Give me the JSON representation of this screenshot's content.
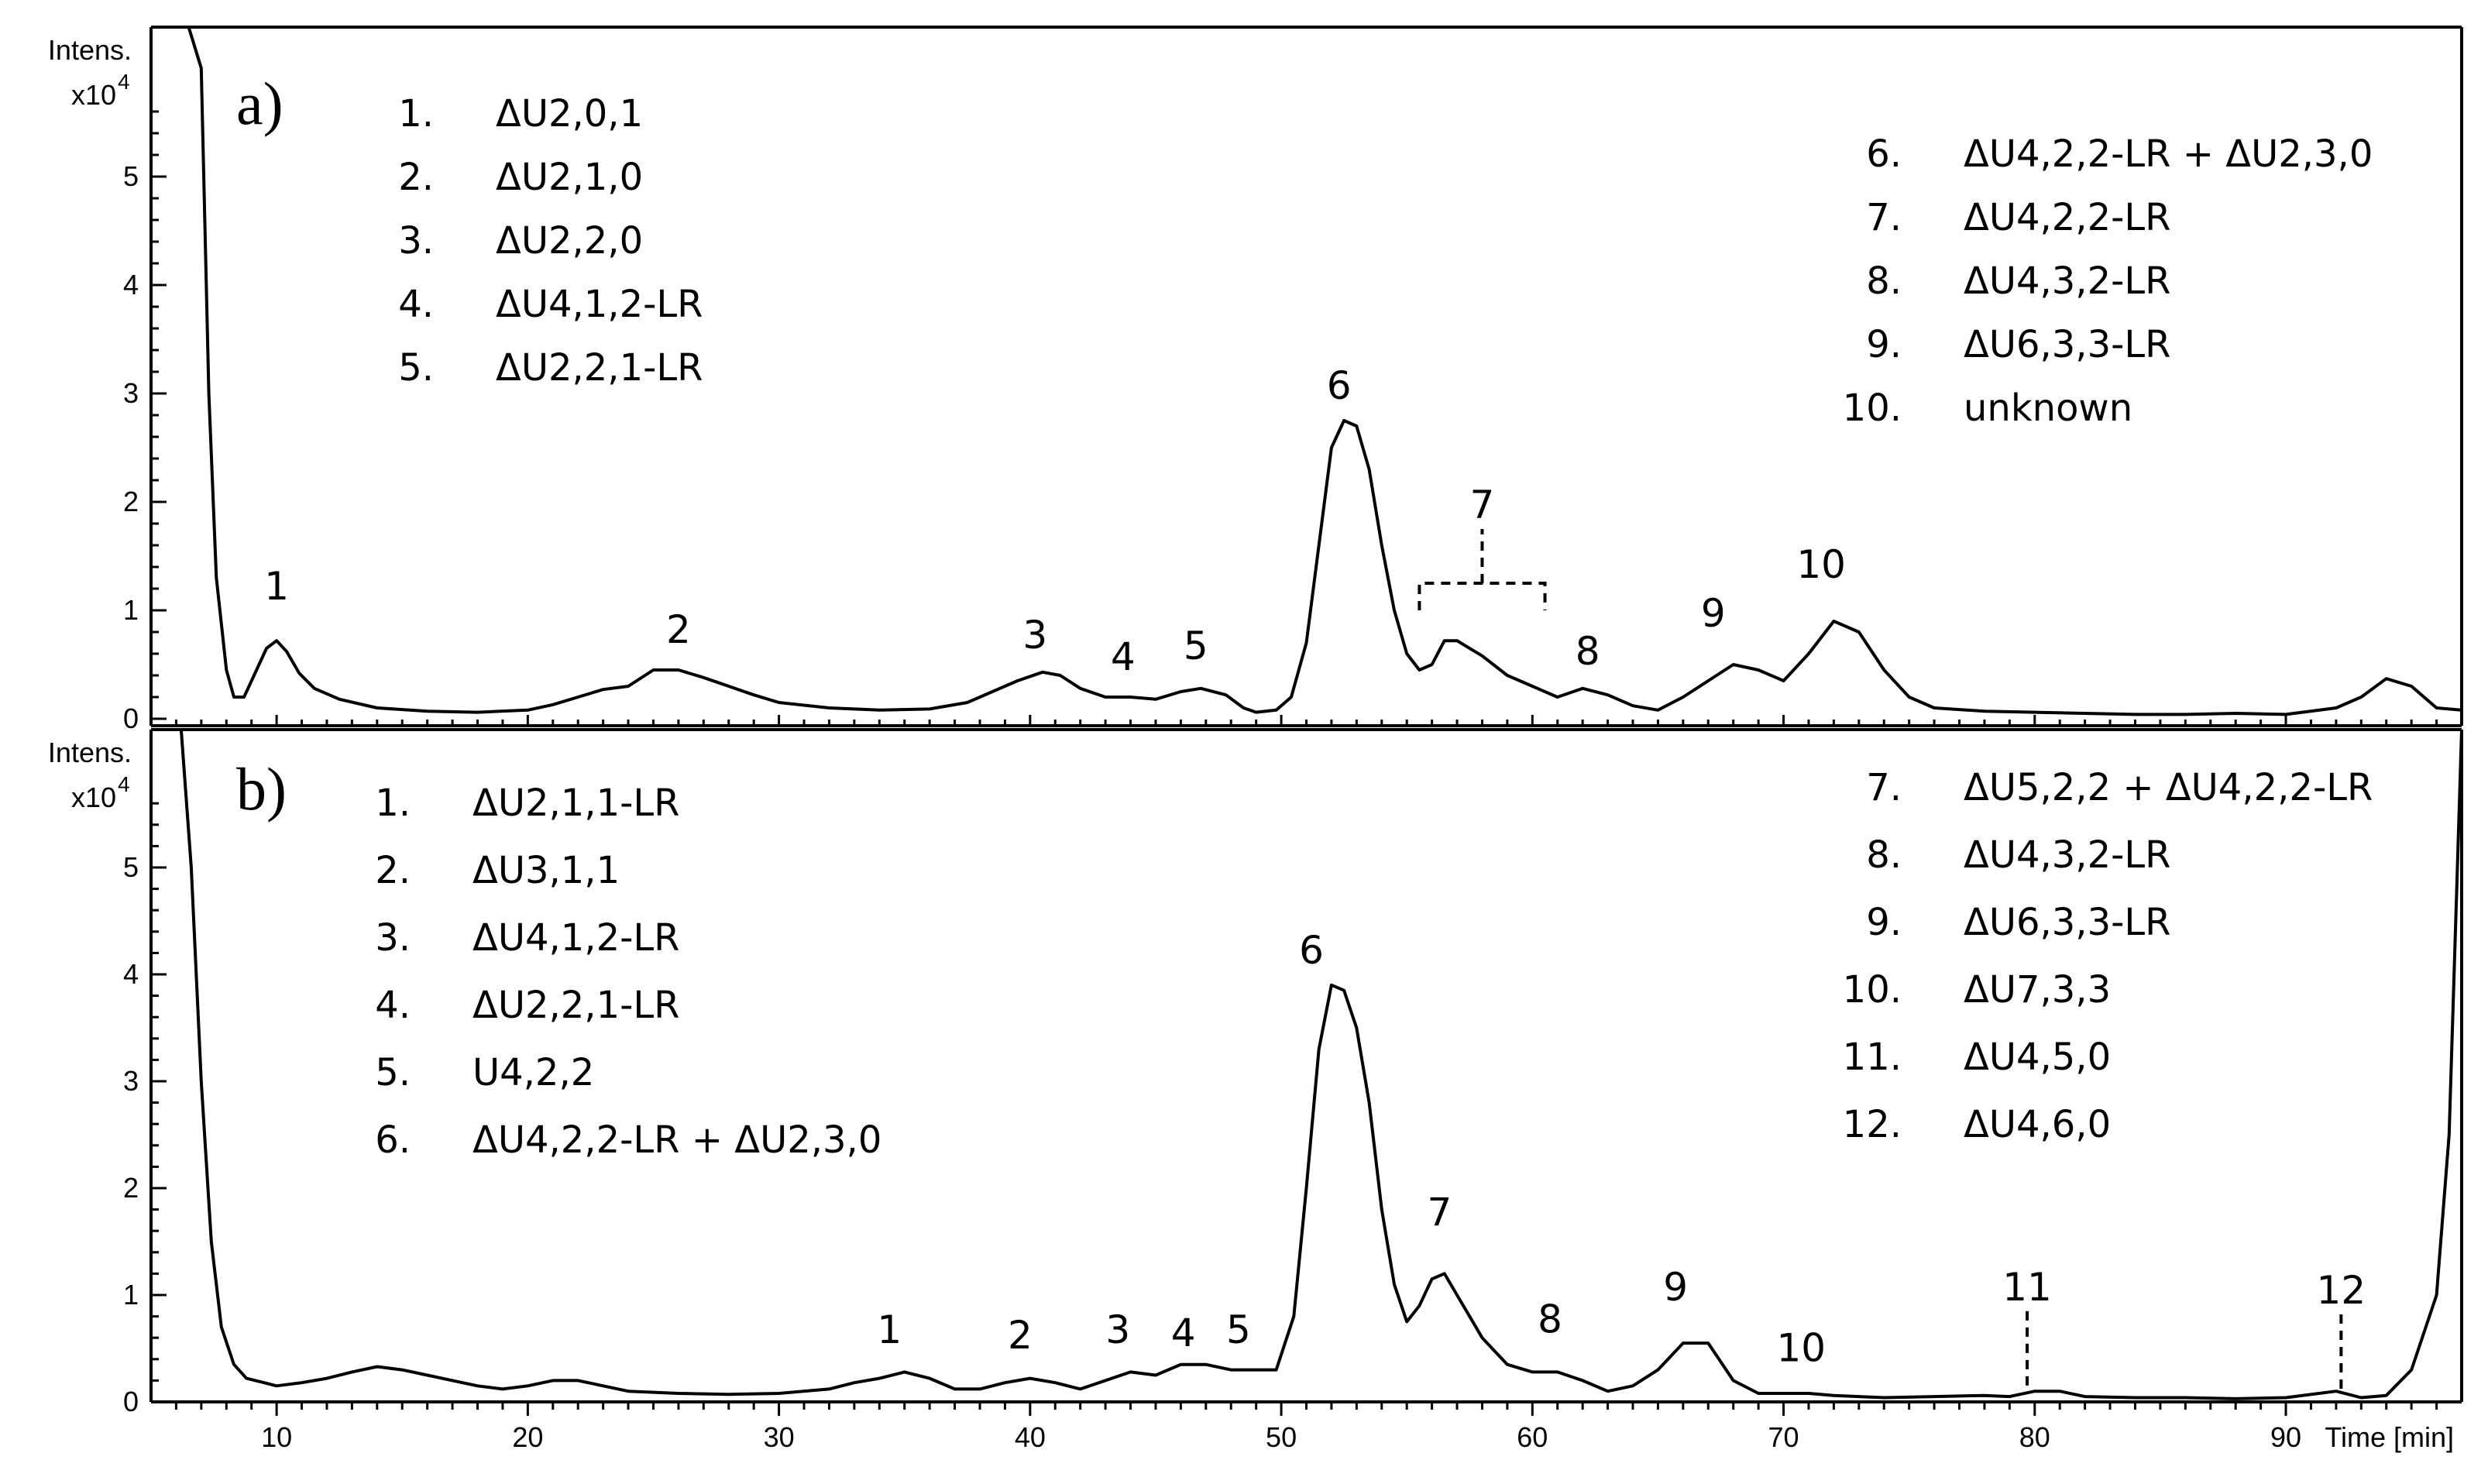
{
  "chart_data": [
    {
      "type": "line",
      "panel_label": "a)",
      "ylabel_line1": "Intens.",
      "ylabel_line2": "x10",
      "ylabel_exp": "4",
      "xlabel": "",
      "xlim": [
        5,
        97
      ],
      "ylim": [
        0,
        6
      ],
      "yticks": [
        0,
        1,
        2,
        3,
        4,
        5
      ],
      "xticks": [],
      "peak_labels": [
        {
          "label": "1",
          "x": 10.0,
          "y": 1.1
        },
        {
          "label": "2",
          "x": 26.0,
          "y": 0.7
        },
        {
          "label": "3",
          "x": 40.2,
          "y": 0.65
        },
        {
          "label": "4",
          "x": 43.7,
          "y": 0.45
        },
        {
          "label": "5",
          "x": 46.6,
          "y": 0.55
        },
        {
          "label": "6",
          "x": 52.3,
          "y": 2.95
        },
        {
          "label": "7",
          "x": 58.0,
          "y": 1.85
        },
        {
          "label": "8",
          "x": 62.2,
          "y": 0.5
        },
        {
          "label": "9",
          "x": 67.2,
          "y": 0.85
        },
        {
          "label": "10",
          "x": 71.5,
          "y": 1.3
        }
      ],
      "legend_left": [
        {
          "num": "1.",
          "name": "ΔU2,0,1"
        },
        {
          "num": "2.",
          "name": "ΔU2,1,0"
        },
        {
          "num": "3.",
          "name": "ΔU2,2,0"
        },
        {
          "num": "4.",
          "name": "ΔU4,1,2-LR"
        },
        {
          "num": "5.",
          "name": "ΔU2,2,1-LR"
        }
      ],
      "legend_right": [
        {
          "num": "6.",
          "name": "ΔU4,2,2-LR + ΔU2,3,0"
        },
        {
          "num": "7.",
          "name": "ΔU4,2,2-LR"
        },
        {
          "num": "8.",
          "name": "ΔU4,3,2-LR"
        },
        {
          "num": "9.",
          "name": "ΔU6,3,3-LR"
        },
        {
          "num": "10.",
          "name": "unknown"
        }
      ],
      "series": [
        {
          "x": [
            6.5,
            7.0,
            7.3,
            7.6,
            8.0,
            8.3,
            8.7,
            9.2,
            9.6,
            10.0,
            10.4,
            10.9,
            11.5,
            12.5,
            14,
            16,
            18,
            20,
            21,
            22,
            23,
            24,
            25,
            26,
            27,
            28,
            29,
            30,
            32,
            34,
            36,
            37.5,
            38.5,
            39.5,
            40.5,
            41.2,
            42,
            43,
            44,
            45,
            46,
            46.8,
            47.8,
            48.5,
            49,
            49.8,
            50.4,
            51,
            51.5,
            52,
            52.5,
            53,
            53.5,
            54,
            54.5,
            55,
            55.5,
            56,
            56.5,
            57,
            58,
            59,
            60,
            61,
            62,
            63,
            64,
            65,
            66,
            67,
            68,
            69,
            70,
            71,
            72,
            73,
            74,
            75,
            76,
            78,
            80,
            82,
            84,
            86,
            88,
            90,
            92,
            93,
            94,
            95,
            96,
            97
          ],
          "y": [
            6.5,
            6.0,
            3.0,
            1.3,
            0.45,
            0.2,
            0.2,
            0.45,
            0.65,
            0.72,
            0.62,
            0.42,
            0.28,
            0.18,
            0.1,
            0.07,
            0.06,
            0.08,
            0.13,
            0.2,
            0.27,
            0.3,
            0.45,
            0.45,
            0.38,
            0.3,
            0.22,
            0.15,
            0.1,
            0.08,
            0.09,
            0.15,
            0.25,
            0.35,
            0.43,
            0.4,
            0.28,
            0.2,
            0.2,
            0.18,
            0.25,
            0.28,
            0.22,
            0.1,
            0.06,
            0.08,
            0.2,
            0.7,
            1.6,
            2.5,
            2.75,
            2.7,
            2.3,
            1.6,
            1.0,
            0.6,
            0.45,
            0.5,
            0.72,
            0.72,
            0.58,
            0.4,
            0.3,
            0.2,
            0.28,
            0.22,
            0.12,
            0.08,
            0.2,
            0.35,
            0.5,
            0.45,
            0.35,
            0.6,
            0.9,
            0.8,
            0.45,
            0.2,
            0.1,
            0.07,
            0.06,
            0.05,
            0.04,
            0.04,
            0.05,
            0.04,
            0.1,
            0.2,
            0.37,
            0.3,
            0.1,
            0.08
          ]
        }
      ]
    },
    {
      "type": "line",
      "panel_label": "b)",
      "ylabel_line1": "Intens.",
      "ylabel_line2": "x10",
      "ylabel_exp": "4",
      "xlabel": "Time [min]",
      "xlim": [
        5,
        97
      ],
      "ylim": [
        0,
        6
      ],
      "yticks": [
        0,
        1,
        2,
        3,
        4,
        5
      ],
      "xticks": [
        10,
        20,
        30,
        40,
        50,
        60,
        70,
        80,
        90
      ],
      "peak_labels": [
        {
          "label": "1",
          "x": 34.4,
          "y": 0.55
        },
        {
          "label": "2",
          "x": 39.6,
          "y": 0.5
        },
        {
          "label": "3",
          "x": 43.5,
          "y": 0.55
        },
        {
          "label": "4",
          "x": 46.1,
          "y": 0.52
        },
        {
          "label": "5",
          "x": 48.3,
          "y": 0.55
        },
        {
          "label": "6",
          "x": 51.2,
          "y": 4.1
        },
        {
          "label": "7",
          "x": 56.3,
          "y": 1.65
        },
        {
          "label": "8",
          "x": 60.7,
          "y": 0.65
        },
        {
          "label": "9",
          "x": 65.7,
          "y": 0.95
        },
        {
          "label": "10",
          "x": 70.7,
          "y": 0.38
        },
        {
          "label": "11",
          "x": 79.7,
          "y": 0.95
        },
        {
          "label": "12",
          "x": 92.2,
          "y": 0.92
        }
      ],
      "legend_left": [
        {
          "num": "1.",
          "name": "ΔU2,1,1-LR"
        },
        {
          "num": "2.",
          "name": "ΔU3,1,1"
        },
        {
          "num": "3.",
          "name": "ΔU4,1,2-LR"
        },
        {
          "num": "4.",
          "name": "ΔU2,2,1-LR"
        },
        {
          "num": "5.",
          "name": "U4,2,2"
        },
        {
          "num": "6.",
          "name": "ΔU4,2,2-LR + ΔU2,3,0"
        }
      ],
      "legend_right": [
        {
          "num": "7.",
          "name": "ΔU5,2,2 + ΔU4,2,2-LR"
        },
        {
          "num": "8.",
          "name": "ΔU4,3,2-LR"
        },
        {
          "num": "9.",
          "name": "ΔU6,3,3-LR"
        },
        {
          "num": "10.",
          "name": "ΔU7,3,3"
        },
        {
          "num": "11.",
          "name": "ΔU4,5,0"
        },
        {
          "num": "12.",
          "name": "ΔU4,6,0"
        }
      ],
      "series": [
        {
          "x": [
            6.2,
            6.6,
            7.0,
            7.4,
            7.8,
            8.3,
            8.8,
            9.5,
            10,
            11,
            12,
            13,
            14,
            15,
            16,
            17,
            18,
            19,
            20,
            21,
            22,
            23,
            24,
            26,
            28,
            30,
            32,
            33,
            34,
            35,
            36,
            37,
            38,
            39,
            40,
            41,
            42,
            43,
            44,
            45,
            46,
            47,
            48,
            49,
            49.8,
            50.5,
            51,
            51.5,
            52,
            52.5,
            53,
            53.5,
            54,
            54.5,
            55,
            55.5,
            56,
            56.5,
            57,
            58,
            59,
            60,
            61,
            62,
            63,
            64,
            65,
            66,
            67,
            68,
            69,
            70,
            71,
            72,
            73,
            74,
            76,
            78,
            79,
            80,
            81,
            82,
            84,
            86,
            88,
            90,
            92,
            93,
            94,
            95,
            96,
            96.5,
            97
          ],
          "y": [
            6.3,
            5.0,
            3.0,
            1.5,
            0.7,
            0.35,
            0.22,
            0.18,
            0.15,
            0.18,
            0.22,
            0.28,
            0.33,
            0.3,
            0.25,
            0.2,
            0.15,
            0.12,
            0.15,
            0.2,
            0.2,
            0.15,
            0.1,
            0.08,
            0.07,
            0.08,
            0.12,
            0.18,
            0.22,
            0.28,
            0.22,
            0.12,
            0.12,
            0.18,
            0.22,
            0.18,
            0.12,
            0.2,
            0.28,
            0.25,
            0.35,
            0.35,
            0.3,
            0.3,
            0.3,
            0.8,
            2.0,
            3.3,
            3.9,
            3.85,
            3.5,
            2.8,
            1.8,
            1.1,
            0.75,
            0.9,
            1.15,
            1.2,
            1.0,
            0.6,
            0.35,
            0.28,
            0.28,
            0.2,
            0.1,
            0.15,
            0.3,
            0.55,
            0.55,
            0.2,
            0.08,
            0.08,
            0.08,
            0.06,
            0.05,
            0.04,
            0.05,
            0.06,
            0.05,
            0.1,
            0.1,
            0.05,
            0.04,
            0.04,
            0.03,
            0.04,
            0.1,
            0.04,
            0.06,
            0.3,
            1.0,
            2.5,
            6.3
          ]
        }
      ]
    }
  ]
}
